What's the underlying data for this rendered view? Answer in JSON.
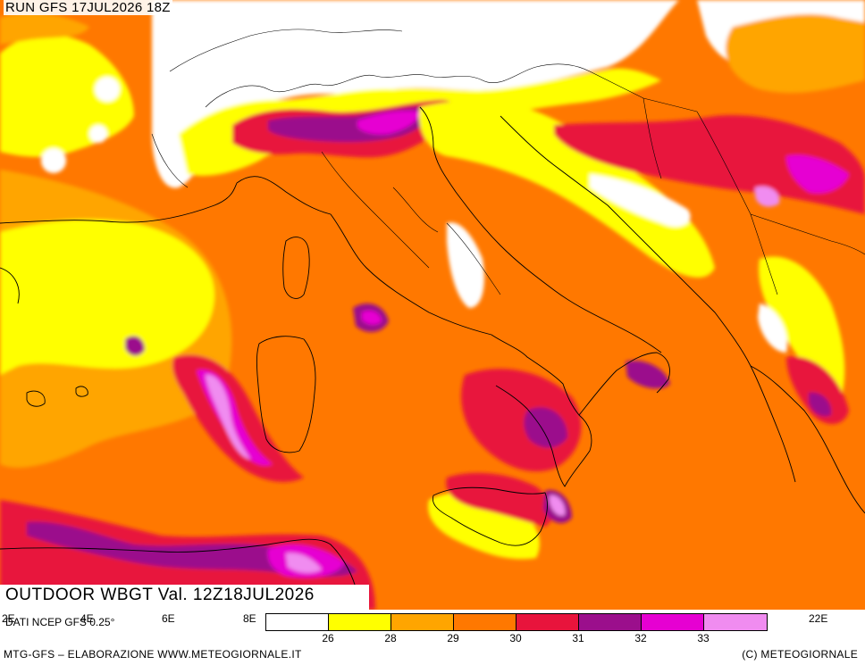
{
  "run_label": "RUN GFS 17JUL2026 18Z",
  "title": "OUTDOOR WBGT Val. 12Z18JUL2026",
  "data_source": "DATI NCEP GFS 0.25°",
  "footer_left": "MTG-GFS – ELABORAZIONE WWW.METEOGIORNALE.IT",
  "footer_right": "(C) METEOGIORNALE",
  "longitude_labels": [
    "2E",
    "4E",
    "6E",
    "8E",
    "22E"
  ],
  "legend": {
    "thresholds": [
      "26",
      "28",
      "29",
      "30",
      "31",
      "32",
      "33"
    ],
    "colors": [
      "#ffffff",
      "#ffff00",
      "#ffa500",
      "#ff7800",
      "#e8143c",
      "#9b0f8c",
      "#e600d2",
      "#f08cf0"
    ]
  },
  "map_colors": {
    "white": "#ffffff",
    "yellow": "#ffff00",
    "orange_light": "#ffa500",
    "orange": "#ff7800",
    "red": "#e8143c",
    "purple": "#9b0f8c",
    "magenta": "#e600d2",
    "pink": "#f08cf0",
    "border": "#000000"
  }
}
